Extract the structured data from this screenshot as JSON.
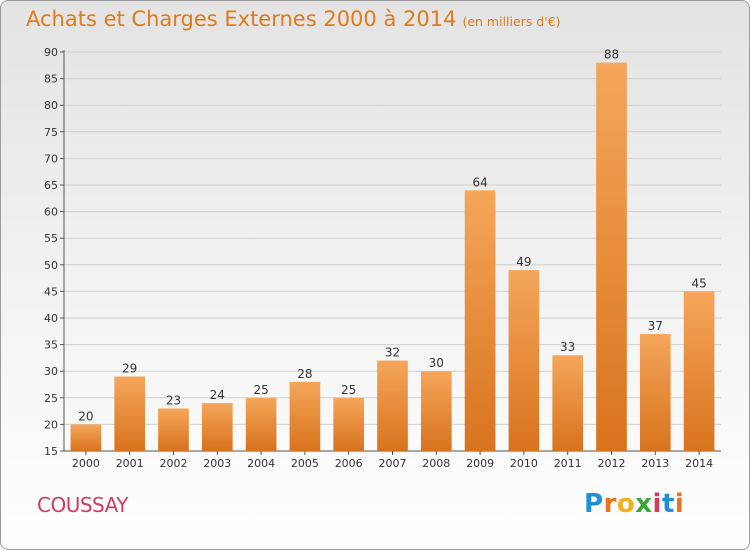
{
  "title": "Achats et Charges Externes 2000 à 2014",
  "subtitle": "(en milliers d'€)",
  "town": "COUSSAY",
  "logo": {
    "letters": [
      "P",
      "r",
      "o",
      "x",
      "i",
      "t",
      "i"
    ],
    "colors": [
      "#1f8fd6",
      "#e8731a",
      "#f2b11a",
      "#3aa635",
      "#d23a5f",
      "#1f8fd6",
      "#e8731a"
    ]
  },
  "colors": {
    "title": "#e07b1a",
    "town": "#d23a5f",
    "bar_light": "#f5a65a",
    "bar_dark": "#d8731d"
  },
  "chart_data": {
    "type": "bar",
    "title": "Achats et Charges Externes 2000 à 2014",
    "subtitle": "(en milliers d'€)",
    "categories": [
      "2000",
      "2001",
      "2002",
      "2003",
      "2004",
      "2005",
      "2006",
      "2007",
      "2008",
      "2009",
      "2010",
      "2011",
      "2012",
      "2013",
      "2014"
    ],
    "values": [
      20,
      29,
      23,
      24,
      25,
      28,
      25,
      32,
      30,
      64,
      49,
      33,
      88,
      37,
      45
    ],
    "ylim": [
      15,
      90
    ],
    "yticks": [
      15,
      20,
      25,
      30,
      35,
      40,
      45,
      50,
      55,
      60,
      65,
      70,
      75,
      80,
      85,
      90
    ],
    "grid": true
  }
}
